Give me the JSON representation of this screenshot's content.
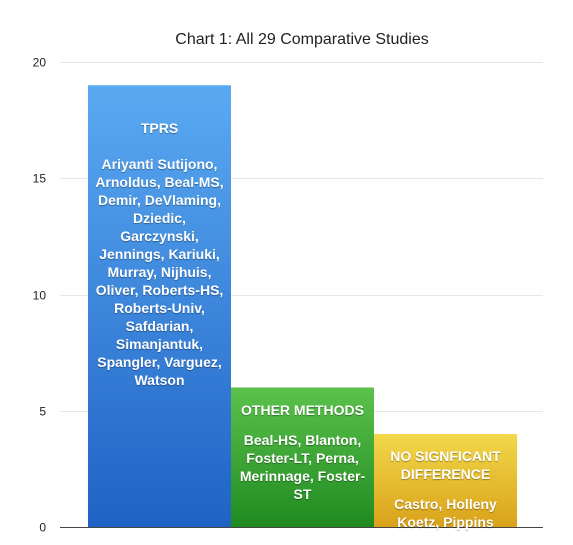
{
  "chart_data": {
    "type": "bar",
    "title": "Chart 1: All 29 Comparative Studies",
    "xlabel": "",
    "ylabel": "",
    "ylim": [
      0,
      20
    ],
    "yticks": [
      "0",
      "5",
      "10",
      "15",
      "20"
    ],
    "grid": true,
    "legend": "none",
    "categories": [
      "TPRS",
      "OTHER METHODS",
      "NO SIGNFICANT DIFFERENCE"
    ],
    "values": [
      19,
      6,
      4
    ],
    "colors": [
      {
        "top": "#5aaaf2",
        "bottom": "#1f62c4"
      },
      {
        "top": "#5cc24c",
        "bottom": "#1f8a20"
      },
      {
        "top": "#f2d84a",
        "bottom": "#d9a21a"
      }
    ],
    "bar_texts": [
      {
        "head": "TPRS",
        "names": "Ariyanti Sutijono, Arnoldus, Beal-MS, Demir, DeVlaming, Dziedic, Garczynski, Jennings, Kariuki, Murray, Nijhuis, Oliver, Roberts-HS, Roberts-Univ, Safdarian, Simanjantuk, Spangler, Varguez, Watson"
      },
      {
        "head": "OTHER METHODS",
        "names": "Beal-HS, Blanton, Foster-LT, Perna, Merinnage, Foster-ST"
      },
      {
        "head": "NO SIGNFICANT DIFFERENCE",
        "names": "Castro, Holleny Koetz, Pippins"
      }
    ]
  }
}
